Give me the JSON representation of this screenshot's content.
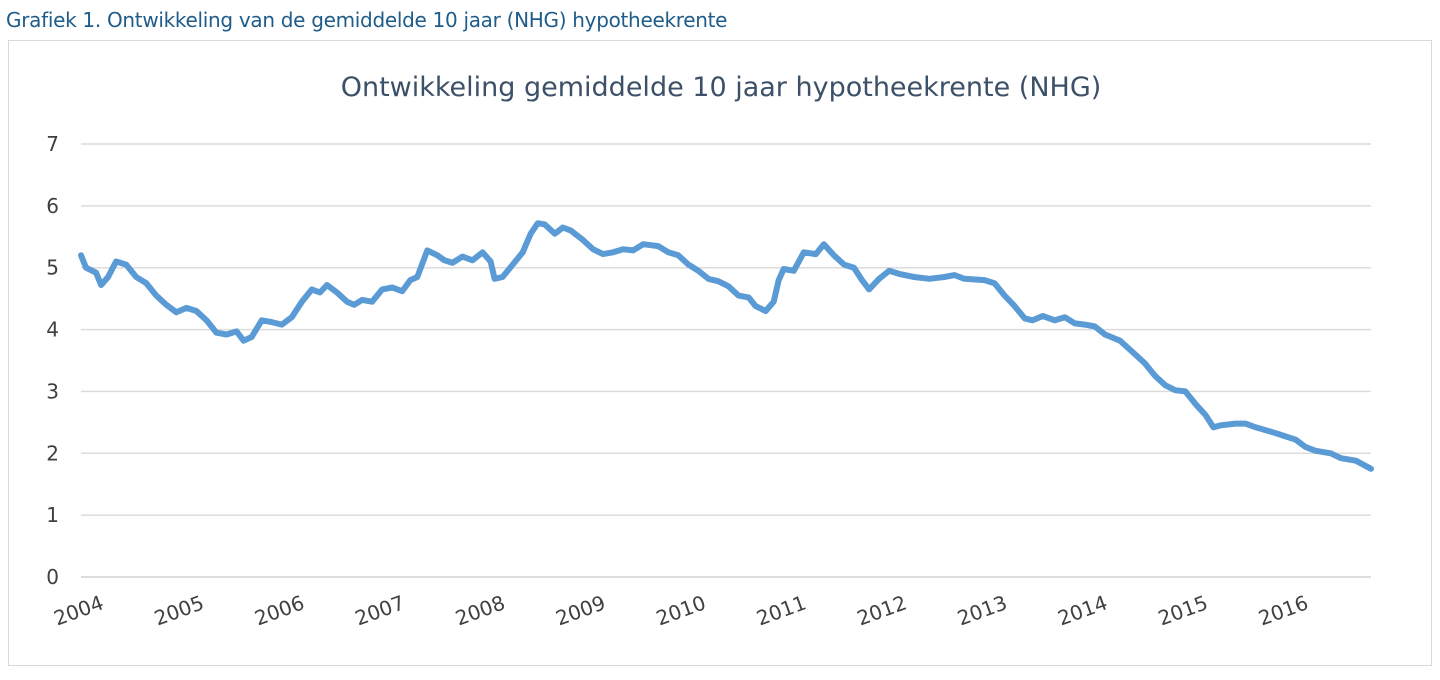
{
  "caption": "Grafiek 1. Ontwikkeling van de gemiddelde 10 jaar (NHG) hypotheekrente",
  "chart_data": {
    "type": "line",
    "title": "Ontwikkeling gemiddelde 10 jaar hypotheekrente (NHG)",
    "xlabel": "",
    "ylabel": "",
    "ylim": [
      0,
      7
    ],
    "xlim": [
      2004,
      2016.85
    ],
    "yticks": [
      "0",
      "1",
      "2",
      "3",
      "4",
      "5",
      "6",
      "7"
    ],
    "xticks": [
      "2004",
      "2005",
      "2006",
      "2007",
      "2008",
      "2009",
      "2010",
      "2011",
      "2012",
      "2013",
      "2014",
      "2015",
      "2016"
    ],
    "grid": true,
    "legend": "none",
    "line_color": "#5b9bd5",
    "series": [
      {
        "points": [
          [
            2004.0,
            5.2
          ],
          [
            2004.05,
            5.0
          ],
          [
            2004.15,
            4.92
          ],
          [
            2004.2,
            4.72
          ],
          [
            2004.27,
            4.85
          ],
          [
            2004.35,
            5.1
          ],
          [
            2004.45,
            5.05
          ],
          [
            2004.55,
            4.85
          ],
          [
            2004.65,
            4.75
          ],
          [
            2004.75,
            4.55
          ],
          [
            2004.85,
            4.4
          ],
          [
            2004.95,
            4.28
          ],
          [
            2005.05,
            4.35
          ],
          [
            2005.15,
            4.3
          ],
          [
            2005.25,
            4.15
          ],
          [
            2005.35,
            3.95
          ],
          [
            2005.45,
            3.92
          ],
          [
            2005.55,
            3.97
          ],
          [
            2005.62,
            3.82
          ],
          [
            2005.7,
            3.88
          ],
          [
            2005.8,
            4.15
          ],
          [
            2005.9,
            4.12
          ],
          [
            2006.0,
            4.08
          ],
          [
            2006.1,
            4.2
          ],
          [
            2006.2,
            4.45
          ],
          [
            2006.3,
            4.65
          ],
          [
            2006.38,
            4.6
          ],
          [
            2006.45,
            4.72
          ],
          [
            2006.55,
            4.6
          ],
          [
            2006.65,
            4.45
          ],
          [
            2006.72,
            4.4
          ],
          [
            2006.8,
            4.48
          ],
          [
            2006.9,
            4.45
          ],
          [
            2007.0,
            4.65
          ],
          [
            2007.1,
            4.68
          ],
          [
            2007.2,
            4.62
          ],
          [
            2007.28,
            4.8
          ],
          [
            2007.35,
            4.85
          ],
          [
            2007.45,
            5.28
          ],
          [
            2007.55,
            5.2
          ],
          [
            2007.62,
            5.12
          ],
          [
            2007.7,
            5.08
          ],
          [
            2007.8,
            5.18
          ],
          [
            2007.9,
            5.12
          ],
          [
            2008.0,
            5.25
          ],
          [
            2008.08,
            5.1
          ],
          [
            2008.12,
            4.82
          ],
          [
            2008.2,
            4.85
          ],
          [
            2008.3,
            5.05
          ],
          [
            2008.4,
            5.25
          ],
          [
            2008.48,
            5.55
          ],
          [
            2008.55,
            5.72
          ],
          [
            2008.62,
            5.7
          ],
          [
            2008.72,
            5.55
          ],
          [
            2008.8,
            5.65
          ],
          [
            2008.88,
            5.6
          ],
          [
            2009.0,
            5.45
          ],
          [
            2009.1,
            5.3
          ],
          [
            2009.2,
            5.22
          ],
          [
            2009.3,
            5.25
          ],
          [
            2009.4,
            5.3
          ],
          [
            2009.5,
            5.28
          ],
          [
            2009.6,
            5.38
          ],
          [
            2009.75,
            5.35
          ],
          [
            2009.85,
            5.25
          ],
          [
            2009.95,
            5.2
          ],
          [
            2010.05,
            5.05
          ],
          [
            2010.15,
            4.95
          ],
          [
            2010.25,
            4.82
          ],
          [
            2010.35,
            4.78
          ],
          [
            2010.45,
            4.7
          ],
          [
            2010.55,
            4.55
          ],
          [
            2010.65,
            4.52
          ],
          [
            2010.72,
            4.38
          ],
          [
            2010.82,
            4.3
          ],
          [
            2010.9,
            4.45
          ],
          [
            2010.95,
            4.8
          ],
          [
            2011.0,
            4.98
          ],
          [
            2011.1,
            4.95
          ],
          [
            2011.2,
            5.25
          ],
          [
            2011.32,
            5.22
          ],
          [
            2011.4,
            5.38
          ],
          [
            2011.5,
            5.2
          ],
          [
            2011.6,
            5.05
          ],
          [
            2011.7,
            5.0
          ],
          [
            2011.78,
            4.8
          ],
          [
            2011.85,
            4.65
          ],
          [
            2011.95,
            4.82
          ],
          [
            2012.05,
            4.95
          ],
          [
            2012.15,
            4.9
          ],
          [
            2012.3,
            4.85
          ],
          [
            2012.45,
            4.82
          ],
          [
            2012.6,
            4.85
          ],
          [
            2012.7,
            4.88
          ],
          [
            2012.8,
            4.82
          ],
          [
            2013.0,
            4.8
          ],
          [
            2013.1,
            4.75
          ],
          [
            2013.2,
            4.55
          ],
          [
            2013.3,
            4.38
          ],
          [
            2013.4,
            4.18
          ],
          [
            2013.48,
            4.15
          ],
          [
            2013.58,
            4.22
          ],
          [
            2013.7,
            4.15
          ],
          [
            2013.8,
            4.2
          ],
          [
            2013.9,
            4.1
          ],
          [
            2014.0,
            4.08
          ],
          [
            2014.1,
            4.05
          ],
          [
            2014.2,
            3.92
          ],
          [
            2014.35,
            3.82
          ],
          [
            2014.5,
            3.6
          ],
          [
            2014.6,
            3.45
          ],
          [
            2014.7,
            3.25
          ],
          [
            2014.8,
            3.1
          ],
          [
            2014.9,
            3.02
          ],
          [
            2015.0,
            3.0
          ],
          [
            2015.1,
            2.8
          ],
          [
            2015.2,
            2.62
          ],
          [
            2015.28,
            2.42
          ],
          [
            2015.35,
            2.45
          ],
          [
            2015.5,
            2.48
          ],
          [
            2015.6,
            2.48
          ],
          [
            2015.7,
            2.42
          ],
          [
            2015.85,
            2.35
          ],
          [
            2015.95,
            2.3
          ],
          [
            2016.1,
            2.22
          ],
          [
            2016.2,
            2.1
          ],
          [
            2016.3,
            2.04
          ],
          [
            2016.45,
            2.0
          ],
          [
            2016.55,
            1.92
          ],
          [
            2016.7,
            1.88
          ],
          [
            2016.85,
            1.75
          ]
        ]
      }
    ]
  }
}
